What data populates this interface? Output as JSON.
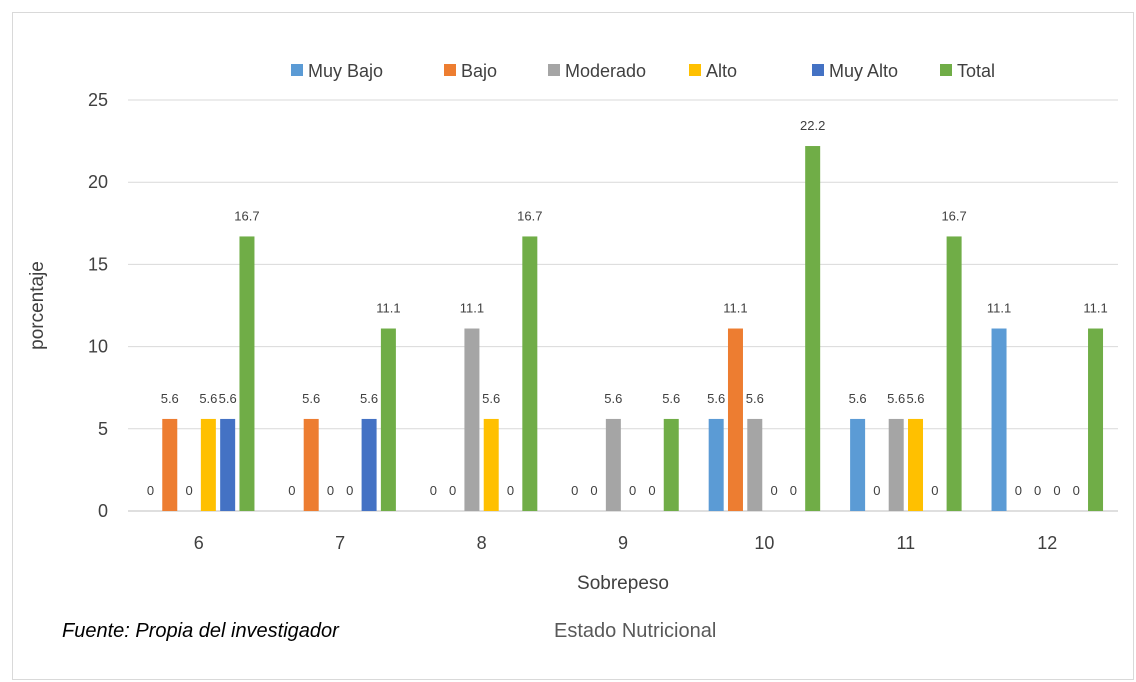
{
  "chart_data": {
    "type": "bar",
    "categories": [
      "6",
      "7",
      "8",
      "9",
      "10",
      "11",
      "12"
    ],
    "series": [
      {
        "name": "Muy Bajo",
        "color": "#5b9bd5",
        "values": [
          0,
          0,
          0,
          0,
          5.6,
          5.6,
          11.1
        ]
      },
      {
        "name": "Bajo",
        "color": "#ed7d31",
        "values": [
          5.6,
          5.6,
          0,
          0,
          11.1,
          0,
          0
        ]
      },
      {
        "name": "Moderado",
        "color": "#a5a5a5",
        "values": [
          0,
          0,
          11.1,
          5.6,
          5.6,
          5.6,
          0
        ]
      },
      {
        "name": "Alto",
        "color": "#ffc000",
        "values": [
          5.6,
          0,
          5.6,
          0,
          0,
          5.6,
          0
        ]
      },
      {
        "name": "Muy Alto",
        "color": "#4472c4",
        "values": [
          5.6,
          5.6,
          0,
          0,
          0,
          0,
          0
        ]
      },
      {
        "name": "Total",
        "color": "#70ad47",
        "values": [
          16.7,
          11.1,
          16.7,
          5.6,
          22.2,
          16.7,
          11.1
        ]
      }
    ],
    "xlabel": "Sobrepeso",
    "ylabel": "porcentaje",
    "ylim": [
      0,
      25
    ],
    "yticks": [
      0,
      5,
      10,
      15,
      20,
      25
    ],
    "grid": true,
    "legend": "top"
  },
  "source_note": "Fuente: Propia del investigador",
  "footer_title": "Estado Nutricional"
}
